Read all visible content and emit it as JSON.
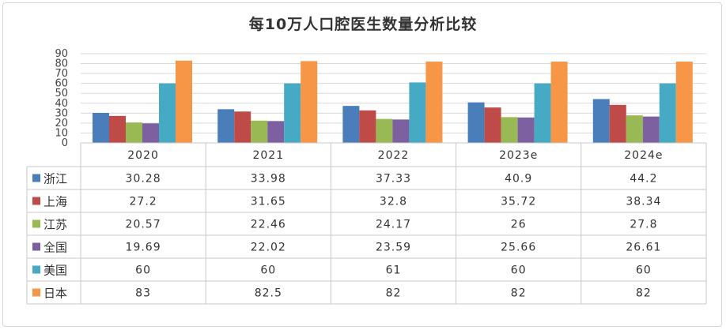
{
  "chart_data": {
    "type": "bar",
    "title": "每10万人口腔医生数量分析比较",
    "categories": [
      "2020",
      "2021",
      "2022",
      "2023e",
      "2024e"
    ],
    "ylim": [
      0,
      90
    ],
    "yticks": [
      0,
      10,
      20,
      30,
      40,
      50,
      60,
      70,
      80,
      90
    ],
    "grid": true,
    "legend": "data-table",
    "series": [
      {
        "name": "浙江",
        "color": "#4a7ebb",
        "values": [
          30.28,
          33.98,
          37.33,
          40.9,
          44.2
        ],
        "labels": [
          "30.28",
          "33.98",
          "37.33",
          "40.9",
          "44.2"
        ]
      },
      {
        "name": "上海",
        "color": "#be4b48",
        "values": [
          27.2,
          31.65,
          32.8,
          35.72,
          38.34
        ],
        "labels": [
          "27.2",
          "31.65",
          "32.8",
          "35.72",
          "38.34"
        ]
      },
      {
        "name": "江苏",
        "color": "#98b954",
        "values": [
          20.57,
          22.46,
          24.17,
          26,
          27.8
        ],
        "labels": [
          "20.57",
          "22.46",
          "24.17",
          "26",
          "27.8"
        ]
      },
      {
        "name": "全国",
        "color": "#7d60a0",
        "values": [
          19.69,
          22.02,
          23.59,
          25.66,
          26.61
        ],
        "labels": [
          "19.69",
          "22.02",
          "23.59",
          "25.66",
          "26.61"
        ]
      },
      {
        "name": "美国",
        "color": "#46aac5",
        "values": [
          60,
          60,
          61,
          60,
          60
        ],
        "labels": [
          "60",
          "60",
          "61",
          "60",
          "60"
        ]
      },
      {
        "name": "日本",
        "color": "#f79646",
        "values": [
          83,
          82.5,
          82,
          82,
          82
        ],
        "labels": [
          "83",
          "82.5",
          "82",
          "82",
          "82"
        ]
      }
    ]
  }
}
